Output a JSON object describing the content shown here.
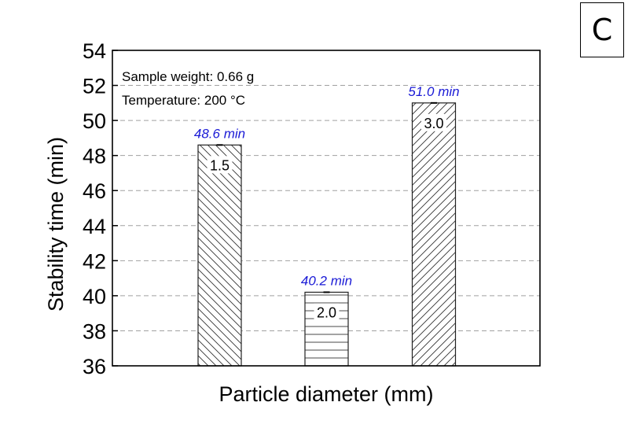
{
  "panel_label": "C",
  "annotations": {
    "line1": "Sample weight: 0.66 g",
    "line2": "Temperature: 200 °C"
  },
  "colors": {
    "value_label": "#1a1ad6",
    "axis": "#000000",
    "grid": "#a0a0a0",
    "bar_fill": "#ffffff",
    "hatch": "#333333"
  },
  "chart_data": {
    "type": "bar",
    "title": "",
    "xlabel": "Particle diameter (mm)",
    "ylabel": "Stability time (min)",
    "ylim": [
      36,
      54
    ],
    "yticks": [
      36,
      38,
      40,
      42,
      44,
      46,
      48,
      50,
      52,
      54
    ],
    "grid": true,
    "categories": [
      "1.5",
      "2.0",
      "3.0"
    ],
    "values": [
      48.6,
      40.2,
      51.0
    ],
    "value_labels": [
      "48.6 min",
      "40.2 min",
      "51.0 min"
    ],
    "hatches": [
      "backslash",
      "horizontal",
      "slash"
    ],
    "legend": null
  }
}
